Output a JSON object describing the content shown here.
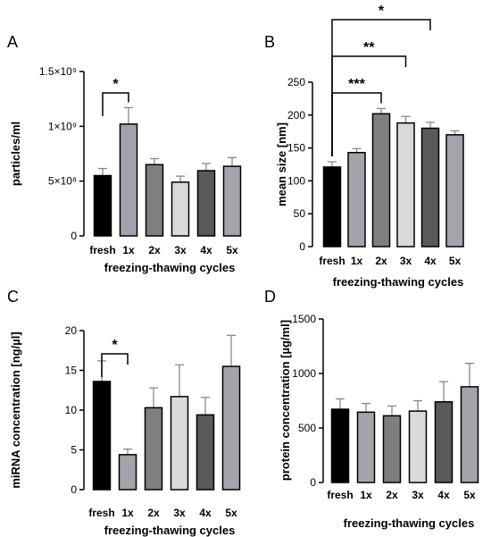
{
  "chart_data": [
    {
      "panel": "A",
      "type": "bar",
      "categories": [
        "fresh",
        "1x",
        "2x",
        "3x",
        "4x",
        "5x"
      ],
      "values": [
        550000000,
        1020000000,
        650000000,
        490000000,
        595000000,
        635000000
      ],
      "errors": [
        65000000,
        150000000,
        55000000,
        55000000,
        65000000,
        80000000
      ],
      "ylim": [
        0,
        1500000000
      ],
      "yticks": [
        0,
        500000000,
        1000000000,
        1500000000
      ],
      "ytick_labels": [
        "0",
        "5×10⁸",
        "1×10⁹",
        "1.5×10⁹"
      ],
      "ylabel": "particles/ml",
      "xlabel": "freezing-thawing cycles",
      "significance": [
        {
          "from": 0,
          "to": 1,
          "label": "*"
        }
      ]
    },
    {
      "panel": "B",
      "type": "bar",
      "categories": [
        "fresh",
        "1x",
        "2x",
        "3x",
        "4x",
        "5x"
      ],
      "values": [
        121,
        143,
        202,
        188,
        180,
        170
      ],
      "errors": [
        8,
        6,
        8,
        10,
        9,
        6
      ],
      "ylim": [
        0,
        250
      ],
      "yticks": [
        0,
        50,
        100,
        150,
        200,
        250
      ],
      "ytick_labels": [
        "0",
        "50",
        "100",
        "150",
        "200",
        "250"
      ],
      "ylabel": "mean size [nm]",
      "xlabel": "freezing-thawing cycles",
      "significance": [
        {
          "from": 0,
          "to": 2,
          "label": "***"
        },
        {
          "from": 0,
          "to": 3,
          "label": "**"
        },
        {
          "from": 0,
          "to": 4,
          "label": "*"
        }
      ]
    },
    {
      "panel": "C",
      "type": "bar",
      "categories": [
        "fresh",
        "1x",
        "2x",
        "3x",
        "4x",
        "5x"
      ],
      "values": [
        13.6,
        4.4,
        10.3,
        11.7,
        9.4,
        15.5
      ],
      "errors": [
        2.6,
        0.7,
        2.5,
        4.0,
        2.2,
        3.9
      ],
      "ylim": [
        0,
        20
      ],
      "yticks": [
        0,
        5,
        10,
        15,
        20
      ],
      "ytick_labels": [
        "0",
        "5",
        "10",
        "15",
        "20"
      ],
      "ylabel": "miRNA concentration [ng/µl]",
      "xlabel": "freezing-thawing cycles",
      "significance": [
        {
          "from": 0,
          "to": 1,
          "label": "*"
        }
      ]
    },
    {
      "panel": "D",
      "type": "bar",
      "categories": [
        "fresh",
        "1x",
        "2x",
        "3x",
        "4x",
        "5x"
      ],
      "values": [
        672,
        645,
        612,
        655,
        740,
        878
      ],
      "errors": [
        95,
        80,
        90,
        95,
        185,
        215
      ],
      "ylim": [
        0,
        1500
      ],
      "yticks": [
        0,
        500,
        1000,
        1500
      ],
      "ytick_labels": [
        "0",
        "500",
        "1000",
        "1500"
      ],
      "ylabel": "protein concentration [µg/ml]",
      "xlabel": "freezing-thawing cycles",
      "significance": []
    }
  ],
  "bar_colors": [
    "#000000",
    "#a3a3ab",
    "#7f7f7f",
    "#d9d9d9",
    "#595959",
    "#a3a3ab"
  ]
}
